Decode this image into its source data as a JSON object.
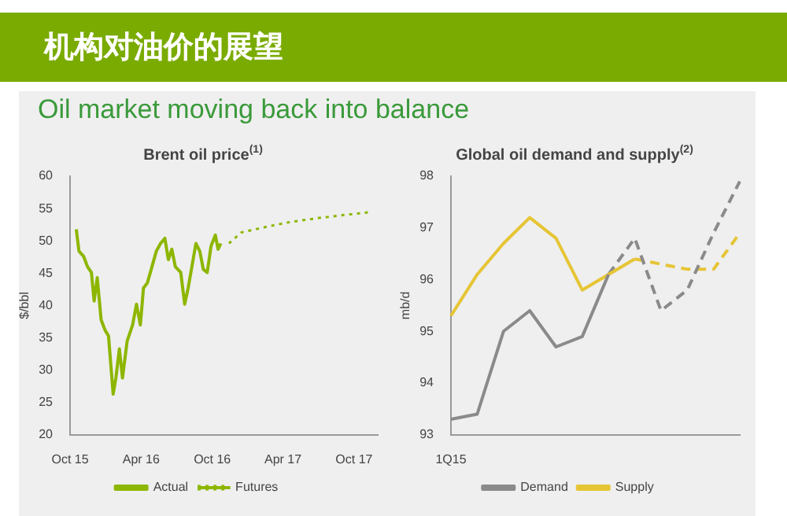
{
  "chart_data": [
    {
      "type": "other",
      "title": "机构对油价的展望",
      "subtitle": "Oil market moving back into balance"
    },
    {
      "type": "line",
      "title": "Brent oil price$^{(1)}$",
      "ylabel": "$/bbl",
      "xlim": [
        "2015-10",
        "2017-12"
      ],
      "xticks": [
        {
          "value": "2015-10",
          "label": "Oct 15"
        },
        {
          "value": "2016-04",
          "label": "Apr 16"
        },
        {
          "value": "2016-10",
          "label": "Oct 16"
        },
        {
          "value": "2017-04",
          "label": "Apr 17"
        },
        {
          "value": "2017-10",
          "label": "Oct 17"
        }
      ],
      "ylim": [
        20,
        60
      ],
      "yticks": [
        20,
        25,
        30,
        35,
        40,
        45,
        50,
        55,
        60
      ],
      "grid": false,
      "legend": "bottom",
      "marker": "none",
      "series": [
        {
          "name": "Actual",
          "color": "#8db600",
          "line_style": "solid",
          "x": [
            "2015-10-17",
            "2015-10-24",
            "2015-11-05",
            "2015-11-15",
            "2015-11-25",
            "2015-12-02",
            "2015-12-10",
            "2015-12-20",
            "2015-12-30",
            "2016-01-08",
            "2016-01-20",
            "2016-01-27",
            "2016-02-05",
            "2016-02-13",
            "2016-02-25",
            "2016-03-10",
            "2016-03-20",
            "2016-03-30",
            "2016-04-07",
            "2016-04-17",
            "2016-04-27",
            "2016-05-10",
            "2016-05-21",
            "2016-06-01",
            "2016-06-10",
            "2016-06-19",
            "2016-06-28",
            "2016-07-12",
            "2016-07-22",
            "2016-07-31",
            "2016-08-20",
            "2016-08-30",
            "2016-09-08",
            "2016-09-18",
            "2016-09-28",
            "2016-10-09",
            "2016-10-16",
            "2016-10-23"
          ],
          "values": [
            51.8,
            48.4,
            47.6,
            46,
            45.1,
            40.7,
            44.3,
            37.8,
            36.2,
            35.3,
            26.3,
            28.8,
            33.3,
            28.8,
            34.5,
            37,
            40.2,
            37,
            42.7,
            43.5,
            45.6,
            48.4,
            49.6,
            50.4,
            47.1,
            48.7,
            46,
            45.1,
            40.2,
            42.7,
            49.6,
            48.4,
            45.6,
            45.1,
            49.2,
            50.9,
            48.7,
            49.6
          ]
        },
        {
          "name": "Futures",
          "color": "#8db600",
          "line_style": "dotted",
          "x": [
            "2016-11-13",
            "2016-12-15",
            "2017-02-12",
            "2017-04-18",
            "2017-06-28",
            "2017-09-05",
            "2017-11-06"
          ],
          "values": [
            49.6,
            51.3,
            52.1,
            52.9,
            53.5,
            54,
            54.4
          ]
        }
      ]
    },
    {
      "type": "line",
      "title": "Global oil demand and supply$^{(2)}$",
      "ylabel": "mb/d",
      "categories": [
        "1Q15",
        null,
        null,
        null,
        null,
        null,
        null,
        null,
        null,
        null,
        null,
        null
      ],
      "ylim": [
        93,
        98
      ],
      "yticks": [
        93,
        94,
        95,
        96,
        97,
        98
      ],
      "grid": false,
      "legend": "bottom",
      "marker": "none",
      "series": [
        {
          "name": "Demand",
          "color": "#8a8a8a",
          "line_style": "solid",
          "values": [
            93.3,
            93.4,
            95.0,
            95.4,
            94.7,
            94.9,
            96.1,
            null,
            null,
            null,
            null,
            null
          ]
        },
        {
          "name": "Supply",
          "color": "#e6c535",
          "line_style": "solid",
          "values": [
            95.3,
            96.1,
            96.7,
            97.2,
            96.8,
            95.8,
            96.1,
            96.4,
            null,
            null,
            null,
            null
          ]
        },
        {
          "color": "#8a8a8a",
          "line_style": "dashed",
          "values": [
            null,
            null,
            null,
            null,
            null,
            null,
            96.1,
            96.8,
            95.4,
            95.8,
            96.9,
            97.9
          ]
        },
        {
          "color": "#e6c535",
          "line_style": "dashed",
          "values": [
            null,
            null,
            null,
            null,
            null,
            null,
            null,
            96.4,
            96.3,
            96.2,
            96.2,
            96.9
          ]
        }
      ]
    }
  ]
}
